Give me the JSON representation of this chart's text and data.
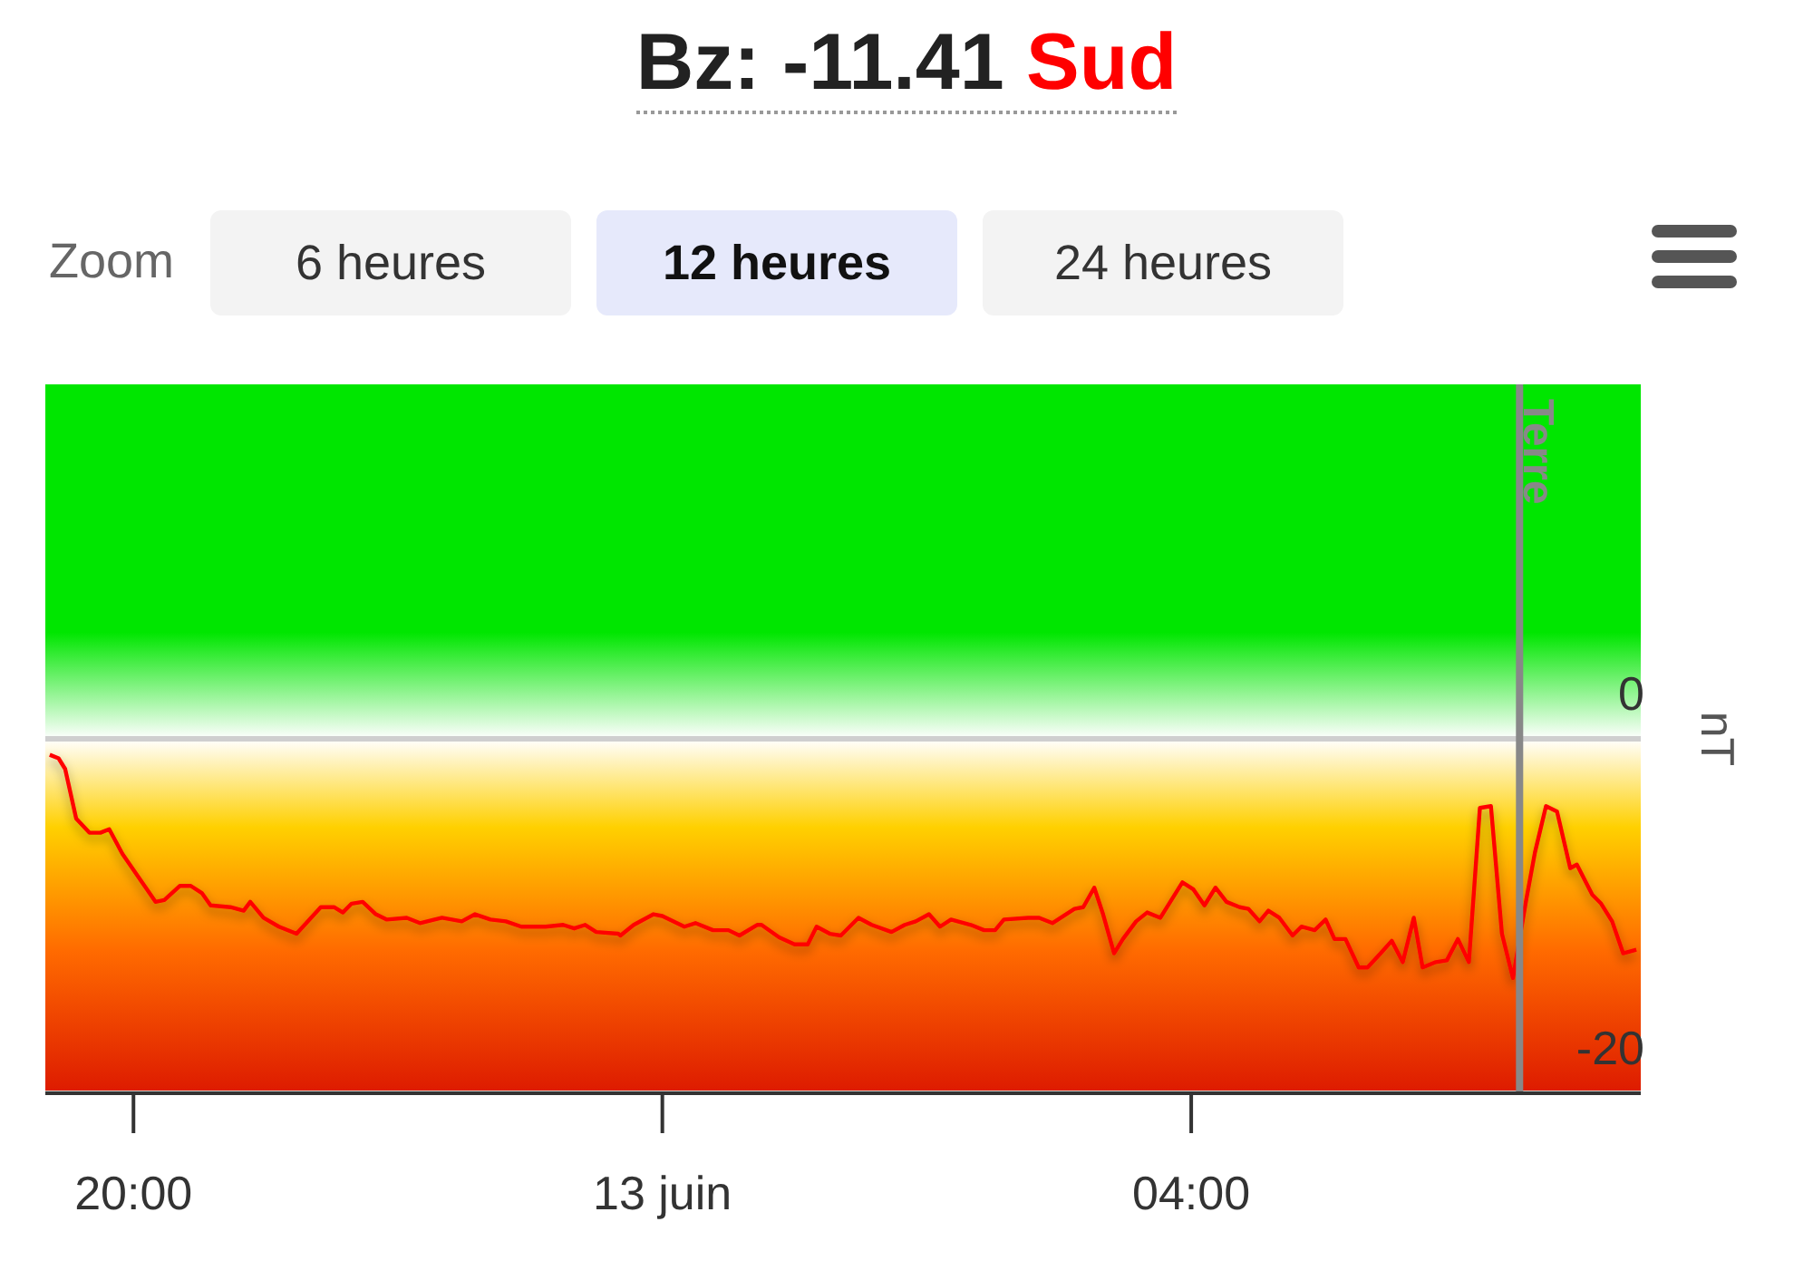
{
  "chart_data": {
    "type": "line",
    "title": "Bz: -11.41",
    "subtitle": "Sud",
    "ylabel": "nT",
    "annotations": [
      "Zoom",
      "6 heures",
      "12 heures",
      "24 heures"
    ],
    "xlim": [
      "--06-12T19:20",
      "--06-13T07:24"
    ],
    "xticks": [
      {
        "value": "--06-12T20:00",
        "label": "20:00"
      },
      {
        "value": "--06-13",
        "label": "13 juin"
      },
      {
        "value": "--06-13T04:00",
        "label": "04:00"
      }
    ],
    "ylim": [
      -20,
      20
    ],
    "yticks": [
      0,
      -20
    ],
    "grid": "y",
    "marker": "none",
    "line_style": "solid",
    "ref_lines": [
      {
        "axis": "x",
        "value": "--06-13T06:29",
        "label": "Terre",
        "color": "#888888"
      }
    ],
    "bands": [
      {
        "axis": "y",
        "from": 0,
        "to": 20,
        "color": "#00e600"
      },
      {
        "axis": "y",
        "from": -20,
        "to": 0,
        "color": "#ff6a00"
      }
    ],
    "series": [
      {
        "color": "#ff0000",
        "x": [
          "--06-12T19:22",
          "--06-12T19:26",
          "--06-12T19:29",
          "--06-12T19:34",
          "--06-12T19:40",
          "--06-12T19:45",
          "--06-12T19:49",
          "--06-12T19:55",
          "--06-12T20:10",
          "--06-12T20:14",
          "--06-12T20:21",
          "--06-12T20:26",
          "--06-12T20:31",
          "--06-12T20:35",
          "--06-12T20:44",
          "--06-12T20:50",
          "--06-12T20:53",
          "--06-12T20:59",
          "--06-12T21:06",
          "--06-12T21:14",
          "--06-12T21:25",
          "--06-12T21:31",
          "--06-12T21:35",
          "--06-12T21:39",
          "--06-12T21:44",
          "--06-12T21:50",
          "--06-12T21:55",
          "--06-12T22:04",
          "--06-12T22:10",
          "--06-12T22:20",
          "--06-12T22:29",
          "--06-12T22:35",
          "--06-12T22:42",
          "--06-12T22:49",
          "--06-12T22:56",
          "--06-12T23:07",
          "--06-12T23:15",
          "--06-12T23:20",
          "--06-12T23:25",
          "--06-12T23:30",
          "--06-12T23:40",
          "--06-12T23:41",
          "--06-12T23:47",
          "--06-12T23:56",
          "--06-13T00:00",
          "--06-13T00:10",
          "--06-13T00:15",
          "--06-13T00:23",
          "--06-13T00:30",
          "--06-13T00:35",
          "--06-13T00:43",
          "--06-13T00:45",
          "--06-13T00:53",
          "--06-13T01:00",
          "--06-13T01:06",
          "--06-13T01:10",
          "--06-13T01:16",
          "--06-13T01:21",
          "--06-13T01:29",
          "--06-13T01:35",
          "--06-13T01:44",
          "--06-13T01:50",
          "--06-13T01:55",
          "--06-13T02:01",
          "--06-13T02:06",
          "--06-13T02:11",
          "--06-13T02:20",
          "--06-13T02:26",
          "--06-13T02:31",
          "--06-13T02:35",
          "--06-13T02:46",
          "--06-13T02:51",
          "--06-13T02:57",
          "--06-13T03:07",
          "--06-13T03:11",
          "--06-13T03:16",
          "--06-13T03:20",
          "--06-13T03:25",
          "--06-13T03:29",
          "--06-13T03:35",
          "--06-13T03:40",
          "--06-13T03:46",
          "--06-13T03:56",
          "--06-13T04:01",
          "--06-13T04:06",
          "--06-13T04:11",
          "--06-13T04:16",
          "--06-13T04:22",
          "--06-13T04:26",
          "--06-13T04:31",
          "--06-13T04:35",
          "--06-13T04:40",
          "--06-13T04:46",
          "--06-13T04:50",
          "--06-13T04:56",
          "--06-13T05:01",
          "--06-13T05:05",
          "--06-13T05:10",
          "--06-13T05:16",
          "--06-13T05:20",
          "--06-13T05:26",
          "--06-13T05:31",
          "--06-13T05:36",
          "--06-13T05:41",
          "--06-13T05:45",
          "--06-13T05:51",
          "--06-13T05:56",
          "--06-13T06:01",
          "--06-13T06:06",
          "--06-13T06:11",
          "--06-13T06:16",
          "--06-13T06:21",
          "--06-13T06:26",
          "--06-13T06:32",
          "--06-13T06:36",
          "--06-13T06:41",
          "--06-13T06:46",
          "--06-13T06:52",
          "--06-13T06:55",
          "--06-13T07:02",
          "--06-13T07:06",
          "--06-13T07:11",
          "--06-13T07:16",
          "--06-13T07:22"
        ],
        "values": [
          -0.9,
          -1.1,
          -1.7,
          -4.5,
          -5.3,
          -5.3,
          -5.1,
          -6.5,
          -9.2,
          -9.1,
          -8.3,
          -8.3,
          -8.7,
          -9.4,
          -9.5,
          -9.7,
          -9.2,
          -10.1,
          -10.6,
          -11.0,
          -9.5,
          -9.5,
          -9.8,
          -9.3,
          -9.2,
          -9.9,
          -10.2,
          -10.1,
          -10.4,
          -10.1,
          -10.3,
          -9.9,
          -10.2,
          -10.3,
          -10.6,
          -10.6,
          -10.5,
          -10.7,
          -10.5,
          -10.9,
          -11.0,
          -11.1,
          -10.5,
          -9.9,
          -10.0,
          -10.6,
          -10.4,
          -10.8,
          -10.8,
          -11.1,
          -10.5,
          -10.5,
          -11.2,
          -11.6,
          -11.6,
          -10.6,
          -11.0,
          -11.1,
          -10.1,
          -10.5,
          -10.9,
          -10.5,
          -10.3,
          -9.9,
          -10.6,
          -10.2,
          -10.5,
          -10.8,
          -10.8,
          -10.2,
          -10.1,
          -10.1,
          -10.4,
          -9.6,
          -9.5,
          -8.4,
          -9.9,
          -12.1,
          -11.3,
          -10.3,
          -9.8,
          -10.1,
          -8.1,
          -8.5,
          -9.4,
          -8.4,
          -9.2,
          -9.5,
          -9.6,
          -10.3,
          -9.7,
          -10.1,
          -11.1,
          -10.6,
          -10.8,
          -10.2,
          -11.3,
          -11.3,
          -12.9,
          -12.9,
          -12.1,
          -11.4,
          -12.6,
          -10.1,
          -12.9,
          -12.6,
          -12.5,
          -11.3,
          -12.6,
          -3.9,
          -3.8,
          -11.0,
          -13.5,
          -9.1,
          -6.4,
          -3.8,
          -4.1,
          -7.3,
          -7.1,
          -8.8,
          -9.3,
          -10.3,
          -12.1,
          -11.9
        ]
      }
    ]
  }
}
